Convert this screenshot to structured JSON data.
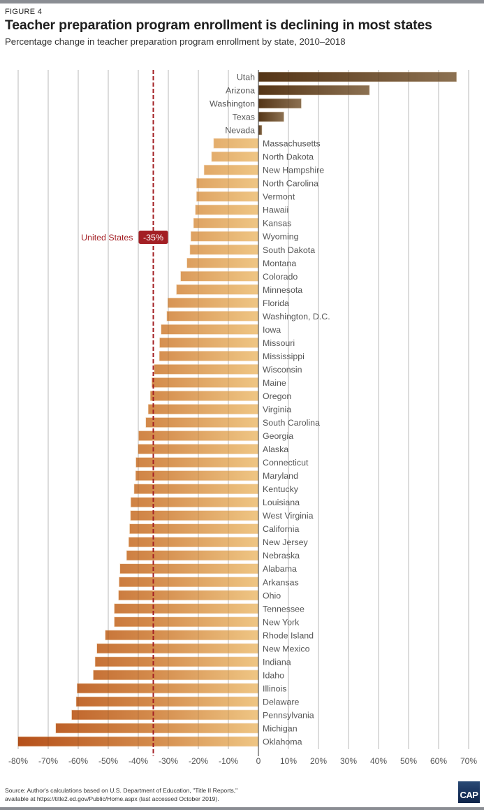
{
  "figure_label": "FIGURE 4",
  "chart_data": {
    "type": "bar",
    "orientation": "horizontal",
    "title": "Teacher preparation program enrollment is declining in most states",
    "subtitle": "Percentage change in teacher preparation program enrollment by state, 2010–2018",
    "xlabel": "",
    "ylabel": "",
    "xlim": [
      -80,
      70
    ],
    "x_ticks": [
      -80,
      -70,
      -60,
      -50,
      -40,
      -30,
      -20,
      -10,
      0,
      10,
      20,
      30,
      40,
      50,
      60,
      70
    ],
    "x_tick_labels": [
      "-80%",
      "-70%",
      "-60%",
      "-50%",
      "-40%",
      "-30%",
      "-20%",
      "-10%",
      "0",
      "10%",
      "20%",
      "30%",
      "40%",
      "50%",
      "60%",
      "70%"
    ],
    "grid": true,
    "categories": [
      "Utah",
      "Arizona",
      "Washington",
      "Texas",
      "Nevada",
      "Massachusetts",
      "North Dakota",
      "New Hampshire",
      "North Carolina",
      "Vermont",
      "Hawaii",
      "Kansas",
      "Wyoming",
      "South Dakota",
      "Montana",
      "Colorado",
      "Minnesota",
      "Florida",
      "Washington, D.C.",
      "Iowa",
      "Missouri",
      "Mississippi",
      "Wisconsin",
      "Maine",
      "Oregon",
      "Virginia",
      "South Carolina",
      "Georgia",
      "Alaska",
      "Connecticut",
      "Maryland",
      "Kentucky",
      "Louisiana",
      "West Virginia",
      "California",
      "New Jersey",
      "Nebraska",
      "Alabama",
      "Arkansas",
      "Ohio",
      "Tennessee",
      "New York",
      "Rhode Island",
      "New Mexico",
      "Indiana",
      "Idaho",
      "Illinois",
      "Delaware",
      "Pennsylvania",
      "Michigan",
      "Oklahoma"
    ],
    "values": [
      66,
      37,
      14.3,
      8.5,
      1.2,
      -14.9,
      -15.6,
      -18.1,
      -20.6,
      -20.6,
      -21.0,
      -21.6,
      -22.5,
      -22.8,
      -23.8,
      -25.9,
      -27.3,
      -30.2,
      -30.5,
      -32.4,
      -32.9,
      -33.0,
      -34.7,
      -35.5,
      -36.0,
      -36.7,
      -37.5,
      -39.9,
      -40.1,
      -40.8,
      -40.9,
      -41.4,
      -42.5,
      -42.6,
      -42.9,
      -43.2,
      -43.9,
      -46.1,
      -46.4,
      -46.6,
      -48.0,
      -48.0,
      -51.0,
      -53.8,
      -54.4,
      -55.0,
      -60.4,
      -60.7,
      -62.2,
      -67.5,
      -80.1
    ],
    "reference_line": {
      "label": "United States",
      "value": -35,
      "value_label": "-35%"
    },
    "colors": {
      "positive_start": "#553516",
      "positive_end": "#8c7152",
      "negative_dark": "#b5501a",
      "negative_light": "#efc684",
      "reference": "#a31f24",
      "grid": "#d4d4d4",
      "axis": "#555555"
    }
  },
  "source": {
    "line1": "Source: Author's calculations based on U.S. Department of Education, \"Title II Reports,\"",
    "line2": "available at https://title2.ed.gov/Public/Home.aspx (last accessed October 2019)."
  },
  "logo": {
    "text": "CAP"
  }
}
